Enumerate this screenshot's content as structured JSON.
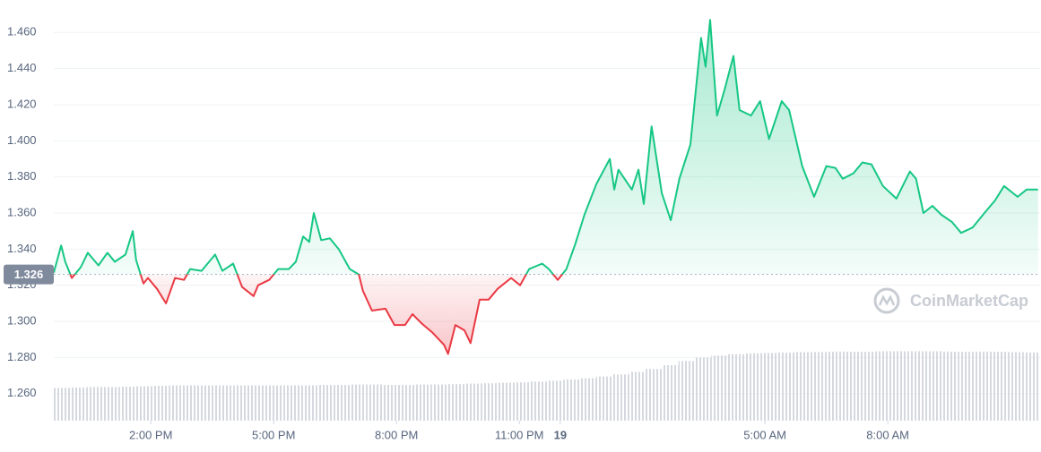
{
  "chart_data": {
    "type": "line",
    "x": [
      11.63,
      11.81,
      11.91,
      12.07,
      12.29,
      12.46,
      12.72,
      12.94,
      13.12,
      13.38,
      13.56,
      13.64,
      13.82,
      13.93,
      14.15,
      14.37,
      14.59,
      14.81,
      14.96,
      15.24,
      15.57,
      15.75,
      16.01,
      16.23,
      16.51,
      16.62,
      16.89,
      17.11,
      17.37,
      17.54,
      17.72,
      17.87,
      17.98,
      18.16,
      18.37,
      18.59,
      18.86,
      19.08,
      19.18,
      19.4,
      19.73,
      19.95,
      20.21,
      20.39,
      20.61,
      20.87,
      21.16,
      21.26,
      21.44,
      21.66,
      21.81,
      22.03,
      22.25,
      22.47,
      22.8,
      23.02,
      23.24,
      23.56,
      23.72,
      23.94,
      24.15,
      24.37,
      24.59,
      24.88,
      25.21,
      25.32,
      25.42,
      25.75,
      25.91,
      26.04,
      26.23,
      26.48,
      26.7,
      26.91,
      27.18,
      27.31,
      27.44,
      27.55,
      27.66,
      27.83,
      28.01,
      28.23,
      28.38,
      28.66,
      28.88,
      29.1,
      29.41,
      29.59,
      29.91,
      30.2,
      30.5,
      30.72,
      30.9,
      31.16,
      31.38,
      31.6,
      31.88,
      32.21,
      32.54,
      32.69,
      32.87,
      33.09,
      33.31,
      33.57,
      33.79,
      34.07,
      34.36,
      34.62,
      34.84,
      35.17,
      35.39,
      35.67
    ],
    "values": [
      1.327,
      1.342,
      1.333,
      1.324,
      1.33,
      1.338,
      1.331,
      1.338,
      1.333,
      1.337,
      1.35,
      1.334,
      1.321,
      1.324,
      1.318,
      1.31,
      1.324,
      1.323,
      1.329,
      1.328,
      1.337,
      1.328,
      1.332,
      1.319,
      1.314,
      1.32,
      1.323,
      1.329,
      1.329,
      1.333,
      1.347,
      1.344,
      1.36,
      1.345,
      1.346,
      1.34,
      1.329,
      1.326,
      1.317,
      1.306,
      1.307,
      1.298,
      1.298,
      1.304,
      1.299,
      1.294,
      1.287,
      1.282,
      1.298,
      1.295,
      1.288,
      1.312,
      1.312,
      1.318,
      1.324,
      1.32,
      1.329,
      1.332,
      1.329,
      1.323,
      1.329,
      1.343,
      1.359,
      1.376,
      1.39,
      1.373,
      1.384,
      1.373,
      1.384,
      1.365,
      1.408,
      1.371,
      1.356,
      1.379,
      1.398,
      1.428,
      1.457,
      1.441,
      1.467,
      1.414,
      1.428,
      1.447,
      1.417,
      1.414,
      1.422,
      1.401,
      1.422,
      1.417,
      1.386,
      1.369,
      1.386,
      1.385,
      1.379,
      1.382,
      1.388,
      1.387,
      1.375,
      1.368,
      1.383,
      1.379,
      1.36,
      1.364,
      1.359,
      1.355,
      1.349,
      1.352,
      1.36,
      1.367,
      1.375,
      1.369,
      1.373,
      1.373
    ],
    "color_up": "#16c784",
    "color_down": "#ea3943",
    "reference_line": {
      "value": 1.326,
      "label": "1.326"
    },
    "xlim": [
      11.63,
      35.72
    ],
    "xticks": [
      {
        "value": 14,
        "label": "2:00 PM"
      },
      {
        "value": 17,
        "label": "5:00 PM"
      },
      {
        "value": 20,
        "label": "8:00 PM"
      },
      {
        "value": 23,
        "label": "11:00 PM"
      },
      {
        "value": 24,
        "label": "19"
      },
      {
        "value": 29,
        "label": "5:00 AM"
      },
      {
        "value": 32,
        "label": "8:00 AM"
      }
    ],
    "ylim": [
      1.245,
      1.478
    ],
    "yticks": [
      {
        "value": 1.26,
        "label": "1.260"
      },
      {
        "value": 1.28,
        "label": "1.280"
      },
      {
        "value": 1.3,
        "label": "1.300"
      },
      {
        "value": 1.32,
        "label": "1.320"
      },
      {
        "value": 1.34,
        "label": "1.340"
      },
      {
        "value": 1.36,
        "label": "1.360"
      },
      {
        "value": 1.38,
        "label": "1.380"
      },
      {
        "value": 1.4,
        "label": "1.400"
      },
      {
        "value": 1.42,
        "label": "1.420"
      },
      {
        "value": 1.44,
        "label": "1.440"
      },
      {
        "value": 1.46,
        "label": "1.460"
      }
    ],
    "grid": true,
    "volume": {
      "axis": "y2",
      "color": "#d5d9df",
      "values": [
        7.8,
        7.9,
        8.0,
        8.0,
        8.1,
        8.2,
        8.3,
        8.4,
        8.4,
        8.4,
        8.4,
        8.4,
        8.4,
        8.4,
        8.4,
        8.4,
        8.5,
        8.5,
        8.6,
        8.6,
        8.5,
        8.5,
        8.6,
        8.6,
        8.7,
        8.8,
        8.9,
        9.0,
        9.1,
        9.3,
        9.5,
        9.8,
        10.1,
        10.5,
        11.0,
        11.6,
        12.3,
        13.2,
        14.2,
        15.0,
        15.5,
        15.8,
        16.0,
        16.1,
        16.2,
        16.3,
        16.3,
        16.4,
        16.4,
        16.4,
        16.5,
        16.5,
        16.5,
        16.5,
        16.4,
        16.4,
        16.4,
        16.4,
        16.3,
        16.2
      ]
    },
    "y2lim": [
      0,
      100
    ],
    "watermark": "CoinMarketCap"
  }
}
